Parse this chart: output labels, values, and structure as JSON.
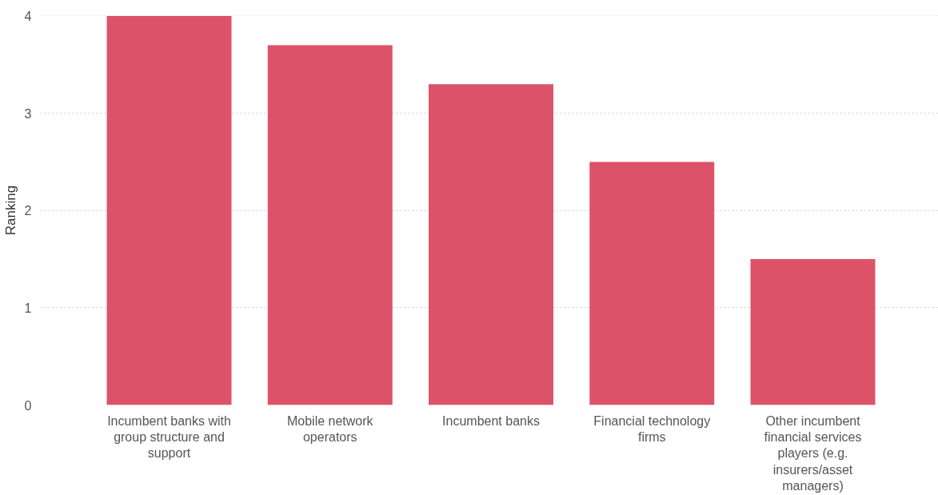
{
  "chart_data": {
    "type": "bar",
    "ylabel": "Ranking",
    "categories": [
      "Incumbent banks with group structure and support",
      "Mobile network operators",
      "Incumbent banks",
      "Financial technology firms",
      "Other incumbent financial services players (e.g. insurers/asset managers)"
    ],
    "values": [
      4.0,
      3.7,
      3.3,
      2.5,
      1.5
    ],
    "color": "#dc5369",
    "ylim": [
      0,
      4
    ],
    "yticks": [
      0,
      1,
      2,
      3,
      4
    ],
    "grid": "y"
  }
}
